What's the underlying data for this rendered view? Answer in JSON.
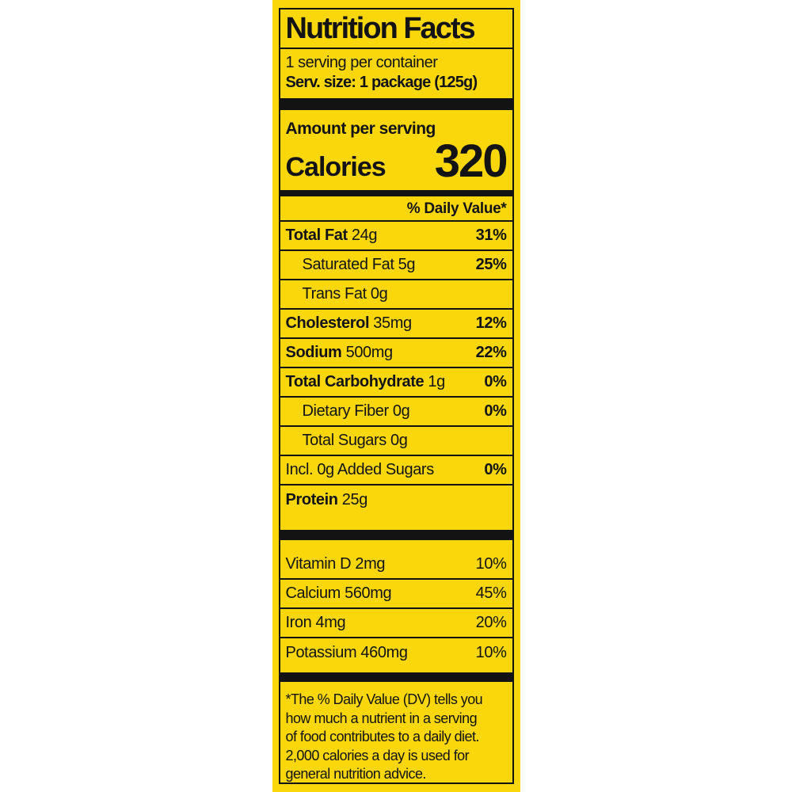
{
  "label": {
    "title": "Nutrition Facts",
    "servings_per_container": "1 serving per container",
    "serving_size": "Serv. size: 1 package (125g)",
    "amount_per_serving": "Amount per serving",
    "calories_label": "Calories",
    "calories_value": "320",
    "daily_value_header": "% Daily Value*",
    "nutrient_rows": [
      {
        "bold": "Total Fat",
        "rest": " 24g",
        "dv": "31%"
      },
      {
        "bold": "",
        "rest": "Saturated Fat 5g",
        "dv": "25%"
      },
      {
        "bold": "",
        "rest": "Trans Fat 0g",
        "dv": ""
      },
      {
        "bold": "Cholesterol",
        "rest": " 35mg",
        "dv": "12%"
      },
      {
        "bold": "Sodium",
        "rest": " 500mg",
        "dv": "22%"
      },
      {
        "bold": "Total Carbohydrate",
        "rest": " 1g",
        "dv": "0%"
      },
      {
        "bold": "",
        "rest": "Dietary Fiber 0g",
        "dv": "0%"
      },
      {
        "bold": "",
        "rest": "Total Sugars 0g",
        "dv": ""
      },
      {
        "bold": "",
        "rest": "Incl. 0g Added Sugars",
        "dv": "0%"
      },
      {
        "bold": "Protein",
        "rest": " 25g",
        "dv": ""
      }
    ],
    "vitamin_rows": [
      {
        "label": "Vitamin D 2mg",
        "dv": "10%"
      },
      {
        "label": "Calcium 560mg",
        "dv": "45%"
      },
      {
        "label": "Iron 4mg",
        "dv": "20%"
      },
      {
        "label": "Potassium 460mg",
        "dv": "10%"
      }
    ],
    "footnote": "*The % Daily Value (DV) tells you\nhow much a nutrient in a serving\nof food contributes to a daily diet.\n2,000 calories a day is used for\ngeneral nutrition advice.",
    "colors": {
      "background": "#F9D70A",
      "text": "#131313"
    }
  }
}
